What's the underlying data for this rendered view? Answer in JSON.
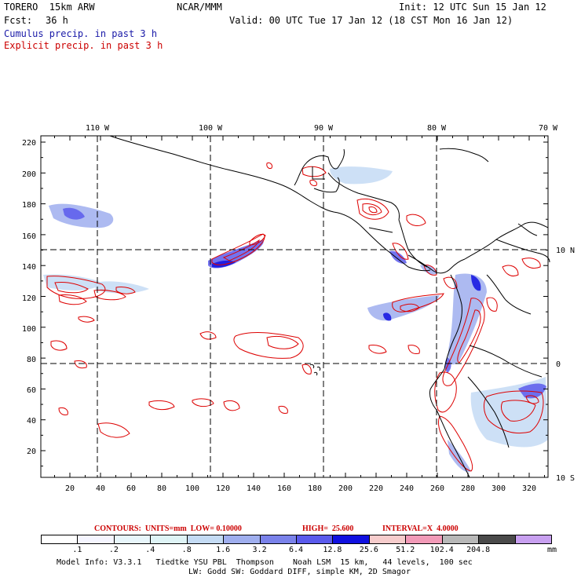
{
  "header": {
    "model": "TORERO  15km ARW",
    "center": "NCAR/MMM",
    "init": "Init: 12 UTC Sun 15 Jan 12",
    "fcst_label": "Fcst:",
    "fcst_value": "36 h",
    "valid": "Valid: 00 UTC Tue 17 Jan 12 (18 CST Mon 16 Jan 12)",
    "field1": "Cumulus precip. in past 3 h",
    "field2": "Explicit precip. in past 3 h"
  },
  "map": {
    "lon_labels": [
      "110 W",
      "100 W",
      "90 W",
      "80 W",
      "70 W"
    ],
    "lat_labels": [
      "10 N",
      "0",
      "10 S"
    ],
    "y_ticks": [
      "220",
      "200",
      "180",
      "160",
      "140",
      "120",
      "100",
      "80",
      "60",
      "40",
      "20"
    ],
    "x_ticks": [
      "20",
      "40",
      "60",
      "80",
      "100",
      "120",
      "140",
      "160",
      "180",
      "200",
      "220",
      "240",
      "260",
      "280",
      "300",
      "320"
    ],
    "colors": {
      "coast": "#000000",
      "grid": "#000000",
      "contour": "#dd0000",
      "cumulus": "#3344dd"
    }
  },
  "contour_info": {
    "contours": "CONTOURS:  UNITS=mm  LOW= 0.10000",
    "high": "HIGH=  25.600",
    "interval": "INTERVAL=X  4.0000"
  },
  "colorbar": {
    "colors": [
      "#ffffff",
      "#f5f5ff",
      "#e8f6fb",
      "#dff4f6",
      "#c4dbf4",
      "#9faeee",
      "#7a82ea",
      "#5a5aec",
      "#1010e0",
      "#f6cccc",
      "#f29ab8",
      "#b8b8b8",
      "#4a4a4a",
      "#c8a0f0"
    ],
    "labels": [
      ".1",
      ".2",
      ".4",
      ".8",
      "1.6",
      "3.2",
      "6.4",
      "12.8",
      "25.6",
      "51.2",
      "102.4",
      "204.8"
    ],
    "units": "mm"
  },
  "footer": {
    "line1": "Model Info: V3.3.1   Tiedtke YSU PBL  Thompson    Noah LSM  15 km,   44 levels,  100 sec",
    "line2": "LW: Godd SW: Goddard DIFF, simple KM, 2D Smagor"
  }
}
